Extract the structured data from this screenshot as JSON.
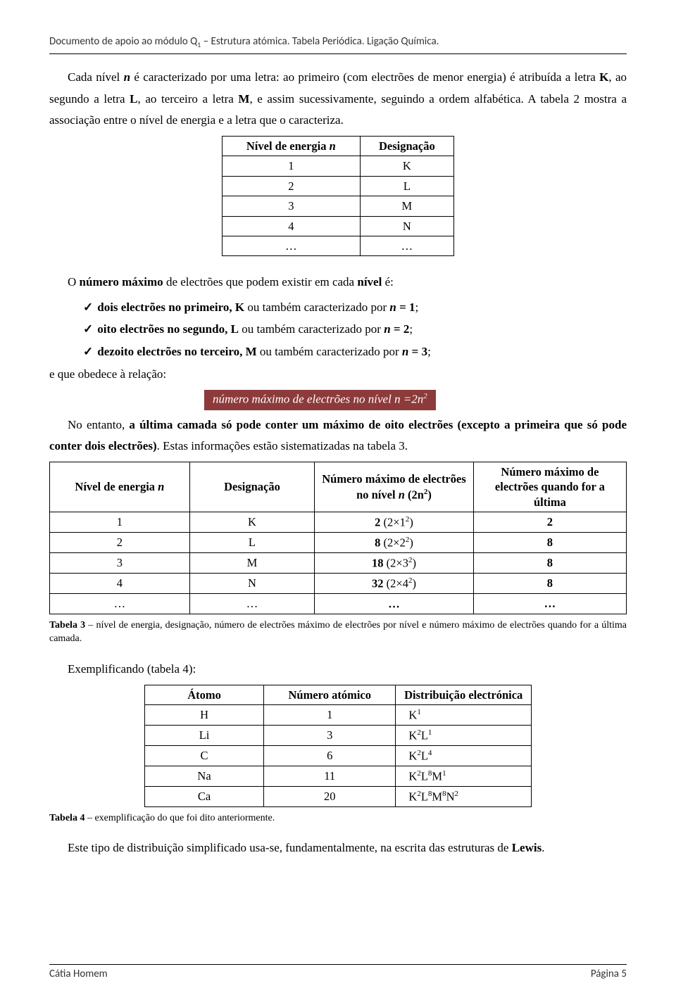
{
  "header": {
    "text_a": "Documento de apoio ao módulo Q",
    "sub": "1",
    "text_b": " – Estrutura atómica. Tabela Periódica. Ligação Química."
  },
  "para1": {
    "p1a": "Cada nível ",
    "p1b": " é caracterizado por uma letra: ao primeiro (com electrões de menor energia) é atribuída a letra ",
    "p1c": ", ao segundo a letra ",
    "p1d": ", ao terceiro a letra ",
    "p1e": ", e assim sucessivamente, seguindo a ordem alfabética. A tabela 2 mostra a associação entre o nível de energia e a letra que o caracteriza.",
    "n": "n",
    "K": "K",
    "L": "L",
    "M": "M"
  },
  "table2": {
    "h1": "Nível de energia ",
    "h1n": "n",
    "h2": "Designação",
    "rows": [
      {
        "a": "1",
        "b": "K"
      },
      {
        "a": "2",
        "b": "L"
      },
      {
        "a": "3",
        "b": "M"
      },
      {
        "a": "4",
        "b": "N"
      },
      {
        "a": "…",
        "b": "…"
      }
    ]
  },
  "para2": {
    "intro_a": "O ",
    "intro_b": "número máximo",
    "intro_c": " de electrões que podem existir em cada ",
    "intro_d": "nível",
    "intro_e": " é:",
    "item1a": "dois electrões no primeiro, K",
    "item1b": " ou também caracterizado por ",
    "item1n": "n",
    "item1c": " = 1",
    "item1d": ";",
    "item2a": "oito electrões no segundo, L",
    "item2b": " ou também caracterizado por ",
    "item2n": "n",
    "item2c": " = 2",
    "item2d": ";",
    "item3a": "dezoito electrões no terceiro, M",
    "item3b": " ou também caracterizado por ",
    "item3n": "n",
    "item3c": " = 3",
    "item3d": ";",
    "relation": "e que obedece à relação:"
  },
  "formula": {
    "text_a": "número máximo de electrões no nível n =2n",
    "exp": "2"
  },
  "para3": {
    "a": "No entanto, ",
    "b": "a última camada só pode conter um máximo de oito electrões (excepto a primeira que só pode conter dois electrões)",
    "c": ". Estas informações estão sistematizadas na tabela 3."
  },
  "table3": {
    "h1a": "Nível de energia ",
    "h1n": "n",
    "h2": "Designação",
    "h3a": "Número máximo de electrões no nível ",
    "h3n": "n",
    "h3b": " (2n",
    "h3exp": "2",
    "h3c": ")",
    "h4": "Número máximo de electrões quando for a última",
    "rows": [
      {
        "a": "1",
        "b": "K",
        "c1": "2",
        "c2": " (2×1",
        "c3": "2",
        "c4": ")",
        "d": "2"
      },
      {
        "a": "2",
        "b": "L",
        "c1": "8",
        "c2": " (2×2",
        "c3": "2",
        "c4": ")",
        "d": "8"
      },
      {
        "a": "3",
        "b": "M",
        "c1": "18",
        "c2": " (2×3",
        "c3": "2",
        "c4": ")",
        "d": "8"
      },
      {
        "a": "4",
        "b": "N",
        "c1": "32",
        "c2": " (2×4",
        "c3": "2",
        "c4": ")",
        "d": "8"
      },
      {
        "a": "…",
        "b": "…",
        "c1": "…",
        "c2": "",
        "c3": "",
        "c4": "",
        "d": "…"
      }
    ]
  },
  "caption3": {
    "a": "Tabela 3",
    "b": " – nível de energia, designação, número de electrões máximo de electrões por nível e número máximo de electrões quando for a última camada."
  },
  "para4": "Exemplificando (tabela 4):",
  "table4": {
    "h1": "Átomo",
    "h2": "Número atómico",
    "h3": "Distribuição electrónica",
    "rows": [
      {
        "a": "H",
        "b": "1",
        "parts": [
          [
            "K",
            "1"
          ]
        ]
      },
      {
        "a": "Li",
        "b": "3",
        "parts": [
          [
            "K",
            "2"
          ],
          [
            "L",
            "1"
          ]
        ]
      },
      {
        "a": "C",
        "b": "6",
        "parts": [
          [
            "K",
            "2"
          ],
          [
            "L",
            "4"
          ]
        ]
      },
      {
        "a": "Na",
        "b": "11",
        "parts": [
          [
            "K",
            "2"
          ],
          [
            "L",
            "8"
          ],
          [
            "M",
            "1"
          ]
        ]
      },
      {
        "a": "Ca",
        "b": "20",
        "parts": [
          [
            "K",
            "2"
          ],
          [
            "L",
            "8"
          ],
          [
            "M",
            "8"
          ],
          [
            "N",
            "2"
          ]
        ]
      }
    ]
  },
  "caption4": {
    "a": "Tabela 4",
    "b": " – exemplificação do que foi dito anteriormente."
  },
  "para5": {
    "a": "Este tipo de distribuição simplificado usa-se, fundamentalmente, na escrita das estruturas de ",
    "b": "Lewis",
    "c": "."
  },
  "footer": {
    "left": "Cátia Homem",
    "right": "Página 5"
  }
}
